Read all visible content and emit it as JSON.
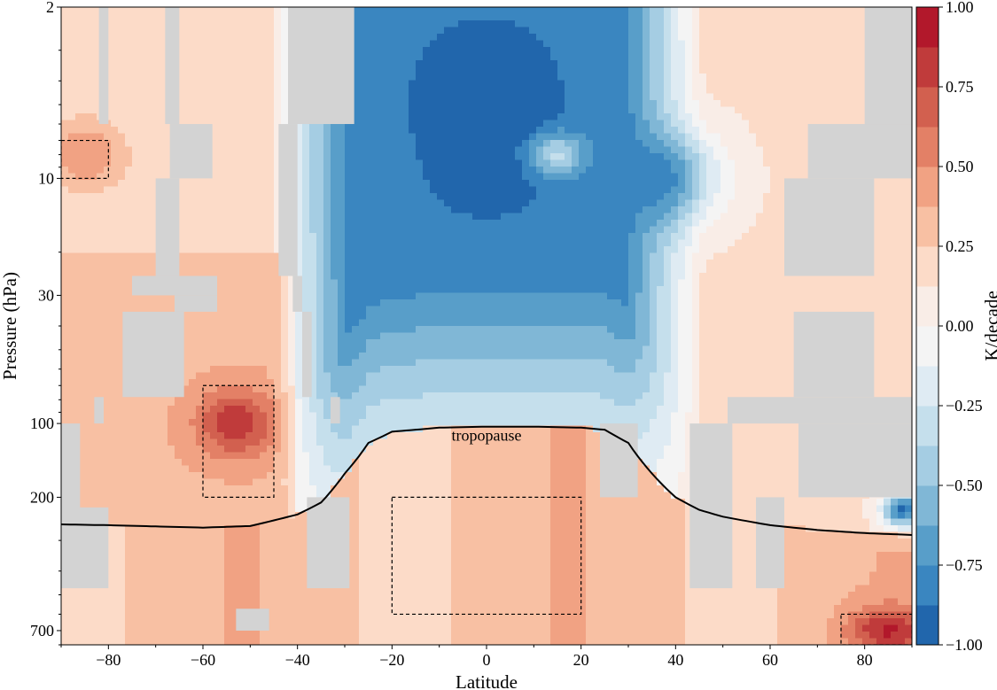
{
  "chart_data": {
    "type": "heatmap",
    "xlabel": "Latitude",
    "ylabel": "Pressure (hPa)",
    "colorbar_label": "K/decade",
    "xlim": [
      -90,
      90
    ],
    "ylim": [
      800,
      2
    ],
    "y_scale": "log",
    "x_ticks": [
      -80,
      -60,
      -40,
      -20,
      0,
      20,
      40,
      60,
      80
    ],
    "x_tick_labels": [
      "−80",
      "−60",
      "−40",
      "−20",
      "0",
      "20",
      "40",
      "60",
      "80"
    ],
    "y_ticks": [
      700,
      200,
      100,
      30,
      10,
      2
    ],
    "y_tick_labels": [
      "700",
      "200",
      "100",
      "30",
      "10",
      "2"
    ],
    "colorbar": {
      "range": [
        -1.0,
        1.0
      ],
      "levels": [
        -1.0,
        -0.875,
        -0.75,
        -0.625,
        -0.5,
        -0.375,
        -0.25,
        -0.125,
        0.0,
        0.125,
        0.25,
        0.375,
        0.5,
        0.625,
        0.75,
        0.875,
        1.0
      ],
      "ticks": [
        1.0,
        0.75,
        0.5,
        0.25,
        0.0,
        -0.25,
        -0.5,
        -0.75,
        -1.0
      ],
      "tick_labels": [
        "1.00",
        "0.75",
        "0.50",
        "0.25",
        "0.00",
        "−0.25",
        "−0.50",
        "−0.75",
        "−1.00"
      ],
      "colors": [
        "#2166ac",
        "#3a86c0",
        "#589ec9",
        "#80b7d6",
        "#a5cde3",
        "#c5dfec",
        "#dfebf3",
        "#f4f4f4",
        "#f9ede7",
        "#fcdbc8",
        "#f8c0a3",
        "#f1a283",
        "#e38066",
        "#d2604f",
        "#c03b3b",
        "#b2182b"
      ]
    },
    "missing_color": "#d3d3d3",
    "annotations": [
      {
        "text": "tropopause",
        "x": 0,
        "y": 112
      }
    ],
    "tropopause": {
      "x": [
        -90,
        -80,
        -70,
        -60,
        -50,
        -40,
        -35,
        -30,
        -25,
        -20,
        -10,
        0,
        10,
        20,
        25,
        30,
        35,
        40,
        45,
        50,
        60,
        70,
        80,
        90
      ],
      "y": [
        258,
        260,
        263,
        266,
        262,
        235,
        210,
        160,
        120,
        108,
        104,
        103,
        103,
        104,
        106,
        120,
        160,
        200,
        225,
        240,
        260,
        272,
        280,
        285
      ]
    },
    "boxes": [
      {
        "lat": [
          -90,
          -80
        ],
        "p": [
          7,
          10
        ]
      },
      {
        "lat": [
          -60,
          -45
        ],
        "p": [
          70,
          200
        ]
      },
      {
        "lat": [
          -20,
          20
        ],
        "p": [
          200,
          600
        ]
      },
      {
        "lat": [
          75,
          90
        ],
        "p": [
          600,
          800
        ]
      }
    ],
    "trend_features": [
      {
        "lat": 0,
        "p": 5,
        "value": -1.0,
        "lat_width": 14,
        "logp_width": 0.3
      },
      {
        "lat": 0,
        "p": 10,
        "value": -0.95,
        "lat_width": 8,
        "logp_width": 0.12
      },
      {
        "lat": 35,
        "p": 10,
        "value": -0.85,
        "lat_width": 9,
        "logp_width": 0.14
      },
      {
        "lat": 15,
        "p": 8,
        "value": -0.35,
        "lat_width": 4,
        "logp_width": 0.06
      },
      {
        "lat": -53,
        "p": 100,
        "value": 0.85,
        "lat_width": 6,
        "logp_width": 0.1
      },
      {
        "lat": 85,
        "p": 700,
        "value": 0.9,
        "lat_width": 6,
        "logp_width": 0.07
      },
      {
        "lat": -85,
        "p": 8,
        "value": 0.5,
        "lat_width": 6,
        "logp_width": 0.1
      },
      {
        "lat": 88,
        "p": 225,
        "value": -0.9,
        "lat_width": 3,
        "logp_width": 0.05
      }
    ],
    "missing_regions": [
      {
        "lat": [
          -90,
          -86
        ],
        "p": [
          100,
          470
        ]
      },
      {
        "lat": [
          -88,
          -80
        ],
        "p": [
          220,
          470
        ]
      },
      {
        "lat": [
          -82,
          -80
        ],
        "p": [
          2,
          6
        ]
      },
      {
        "lat": [
          -83,
          -81
        ],
        "p": [
          78,
          100
        ]
      },
      {
        "lat": [
          -68,
          -65
        ],
        "p": [
          2,
          6
        ]
      },
      {
        "lat": [
          -67,
          -58
        ],
        "p": [
          6,
          10
        ]
      },
      {
        "lat": [
          -70,
          -65
        ],
        "p": [
          10,
          25
        ]
      },
      {
        "lat": [
          -75,
          -57
        ],
        "p": [
          25,
          30
        ]
      },
      {
        "lat": [
          -77,
          -64
        ],
        "p": [
          35,
          78
        ]
      },
      {
        "lat": [
          -66,
          -57
        ],
        "p": [
          30,
          35
        ]
      },
      {
        "lat": [
          -42,
          -28
        ],
        "p": [
          2,
          6
        ]
      },
      {
        "lat": [
          -44,
          -40
        ],
        "p": [
          6,
          25
        ]
      },
      {
        "lat": [
          -41,
          -39
        ],
        "p": [
          25,
          35
        ]
      },
      {
        "lat": [
          -39,
          -37
        ],
        "p": [
          35,
          78
        ]
      },
      {
        "lat": [
          -33,
          -31
        ],
        "p": [
          78,
          100
        ]
      },
      {
        "lat": [
          -38,
          -29
        ],
        "p": [
          200,
          470
        ]
      },
      {
        "lat": [
          -53,
          -46
        ],
        "p": [
          570,
          700
        ]
      },
      {
        "lat": [
          24,
          32
        ],
        "p": [
          100,
          200
        ]
      },
      {
        "lat": [
          43,
          52
        ],
        "p": [
          100,
          470
        ]
      },
      {
        "lat": [
          57,
          63
        ],
        "p": [
          200,
          470
        ]
      },
      {
        "lat": [
          51,
          90
        ],
        "p": [
          78,
          100
        ]
      },
      {
        "lat": [
          66,
          90
        ],
        "p": [
          100,
          200
        ]
      },
      {
        "lat": [
          65,
          82
        ],
        "p": [
          35,
          78
        ]
      },
      {
        "lat": [
          63,
          82
        ],
        "p": [
          10,
          25
        ]
      },
      {
        "lat": [
          68,
          90
        ],
        "p": [
          6,
          10
        ]
      },
      {
        "lat": [
          80,
          90
        ],
        "p": [
          2,
          6
        ]
      }
    ]
  }
}
